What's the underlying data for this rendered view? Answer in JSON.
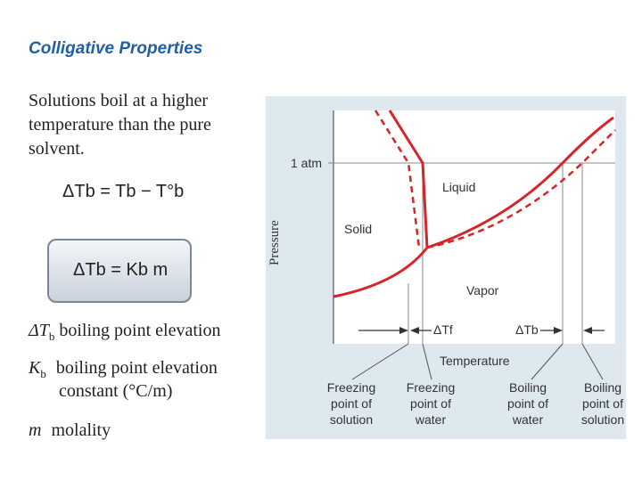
{
  "slide": {
    "title": "Colligative Properties",
    "intro": "Solutions boil at a higher temperature than the pure solvent.",
    "equation1": {
      "lhs": "ΔTb = Tb − T°b"
    },
    "equation2": {
      "lhs": "ΔTb = Kb m"
    },
    "definitions": [
      {
        "symbol": "ΔT",
        "sub": "b",
        "text": "boiling point elevation"
      },
      {
        "symbol": "K",
        "sub": "b",
        "text": "boiling point elevation",
        "text2": "constant (°C/m)"
      },
      {
        "symbol": "m",
        "sub": "",
        "text": "molality"
      }
    ]
  },
  "diagram": {
    "y_axis": "Pressure",
    "x_axis": "Temperature",
    "atm_label": "1 atm",
    "regions": {
      "liquid": "Liquid",
      "solid": "Solid",
      "vapor": "Vapor"
    },
    "delta_tf": "ΔTf",
    "delta_tb": "ΔTb",
    "captions": [
      {
        "line1": "Freezing",
        "line2": "point of",
        "line3": "solution"
      },
      {
        "line1": "Freezing",
        "line2": "point of",
        "line3": "water"
      },
      {
        "line1": "Boiling",
        "line2": "point of",
        "line3": "water"
      },
      {
        "line1": "Boiling",
        "line2": "point of",
        "line3": "solution"
      }
    ],
    "colors": {
      "curve": "#d8232a",
      "background": "#dde8ef",
      "plot_area": "#ffffff"
    }
  }
}
